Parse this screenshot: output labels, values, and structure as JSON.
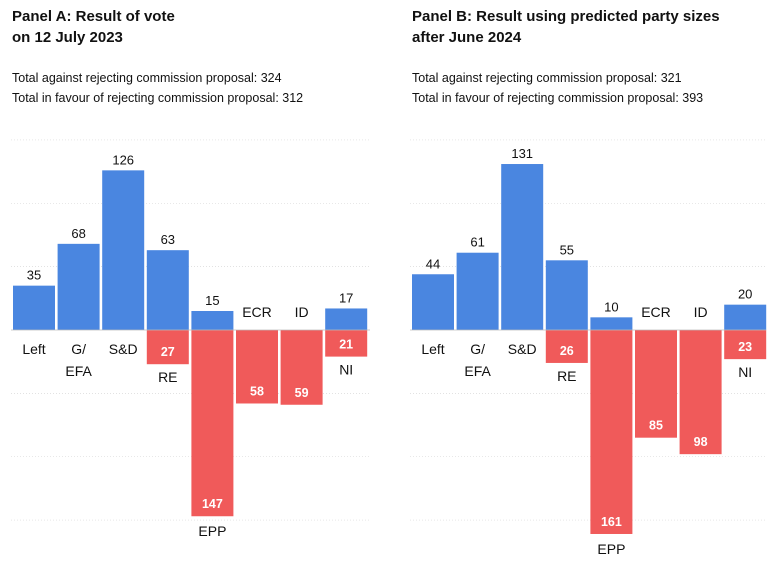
{
  "chart_data": [
    {
      "type": "bar",
      "panel": "A",
      "title": "Panel A: Result of vote\non 12 July 2023",
      "totals": [
        "Total against rejecting commission proposal: 324",
        "Total in favour of rejecting commission proposal: 312"
      ],
      "categories": [
        "Left",
        "G/\nEFA",
        "S&D",
        "RE",
        "EPP",
        "ECR",
        "ID",
        "NI"
      ],
      "series": [
        {
          "name": "Against rejecting",
          "color": "#4a86e0",
          "values": [
            35,
            68,
            126,
            63,
            15,
            0,
            0,
            17
          ]
        },
        {
          "name": "In favour of rejecting",
          "color": "#f05a5a",
          "values": [
            0,
            0,
            0,
            27,
            147,
            58,
            59,
            21
          ]
        }
      ],
      "ylim": [
        -150,
        150
      ],
      "grid": true
    },
    {
      "type": "bar",
      "panel": "B",
      "title": "Panel B: Result using predicted party sizes\nafter June 2024",
      "totals": [
        "Total against rejecting commission proposal: 321",
        "Total in favour of rejecting commission proposal: 393"
      ],
      "categories": [
        "Left",
        "G/\nEFA",
        "S&D",
        "RE",
        "EPP",
        "ECR",
        "ID",
        "NI"
      ],
      "series": [
        {
          "name": "Against rejecting",
          "color": "#4a86e0",
          "values": [
            44,
            61,
            131,
            55,
            10,
            0,
            0,
            20
          ]
        },
        {
          "name": "In favour of rejecting",
          "color": "#f05a5a",
          "values": [
            0,
            0,
            0,
            26,
            161,
            85,
            98,
            23
          ]
        }
      ],
      "ylim": [
        -150,
        150
      ],
      "grid": true
    }
  ]
}
